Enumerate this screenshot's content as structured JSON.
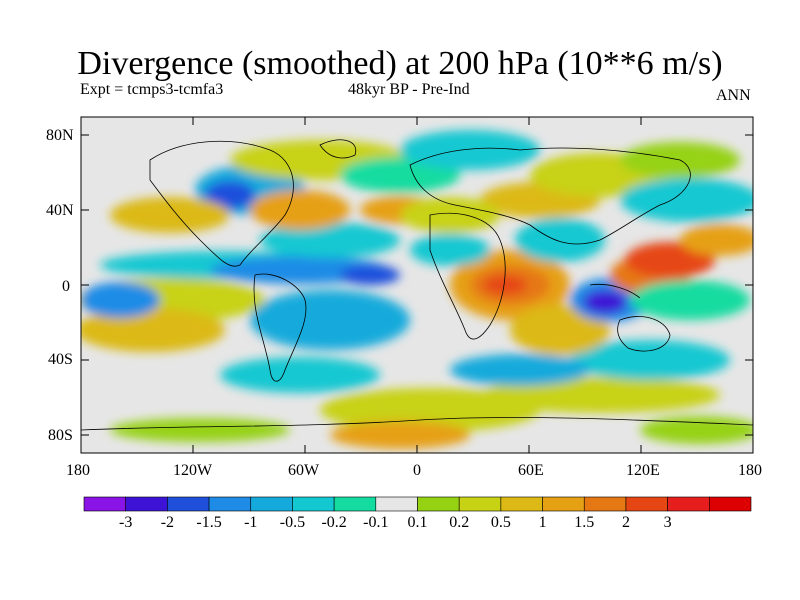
{
  "title": "Divergence (smoothed) at 200 hPa (10**6 m/s)",
  "experiment": "Expt = tcmps3-tcmfa3",
  "period": "48kyr BP - Pre-Ind",
  "season": "ANN",
  "lat_ticks": [
    "80N",
    "40N",
    "0",
    "40S",
    "80S"
  ],
  "lon_ticks": [
    "180",
    "120W",
    "60W",
    "0",
    "60E",
    "120E",
    "180"
  ],
  "colorbar": {
    "colors": [
      "#8a14e6",
      "#3d14d6",
      "#1e50dc",
      "#1e8ce6",
      "#14aadc",
      "#14c8d2",
      "#14dca0",
      "#e6e6e6",
      "#96d214",
      "#c8d214",
      "#dcb914",
      "#e6a014",
      "#e67814",
      "#e64614",
      "#e61e1e",
      "#dc0000"
    ],
    "labels": [
      "-3",
      "-2",
      "-1.5",
      "-1",
      "-0.5",
      "-0.2",
      "-0.1",
      "0.1",
      "0.2",
      "0.5",
      "1",
      "1.5",
      "2",
      "3"
    ]
  }
}
